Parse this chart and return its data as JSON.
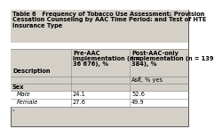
{
  "title_line1": "Table 6   Frequency of Tobacco Use Assessment; Provision",
  "title_line2": "Cessation Counseling by AAC Time Period; and Test of HTE",
  "title_line3": "Insurance Type",
  "col2_header_line1": "Pre-AAC",
  "col2_header_line2": "implementation (n =",
  "col2_header_line3": "36 676), %",
  "col3_header_line1": "Post-AAC-only",
  "col3_header_line2": "implementation (n = 139",
  "col3_header_line3": "384), %",
  "col1_label": "Description",
  "subheader": "Ask",
  "subheader_super": "a",
  "subheader_suffix": ", % yes",
  "section": "Sex",
  "rows": [
    [
      "Male",
      "24.1",
      "52.6"
    ],
    [
      "Female",
      "27.6",
      "49.9"
    ]
  ],
  "footnote": "a",
  "title_bg": "#d4d0c8",
  "header_bg": "#d4d0c8",
  "subheader_bg": "#d4d0c8",
  "section_bg": "#d4d0c8",
  "white_bg": "#ffffff",
  "border_color": "#888888",
  "font_size": 4.8,
  "title_font_size": 4.8,
  "header_font_size": 4.8
}
